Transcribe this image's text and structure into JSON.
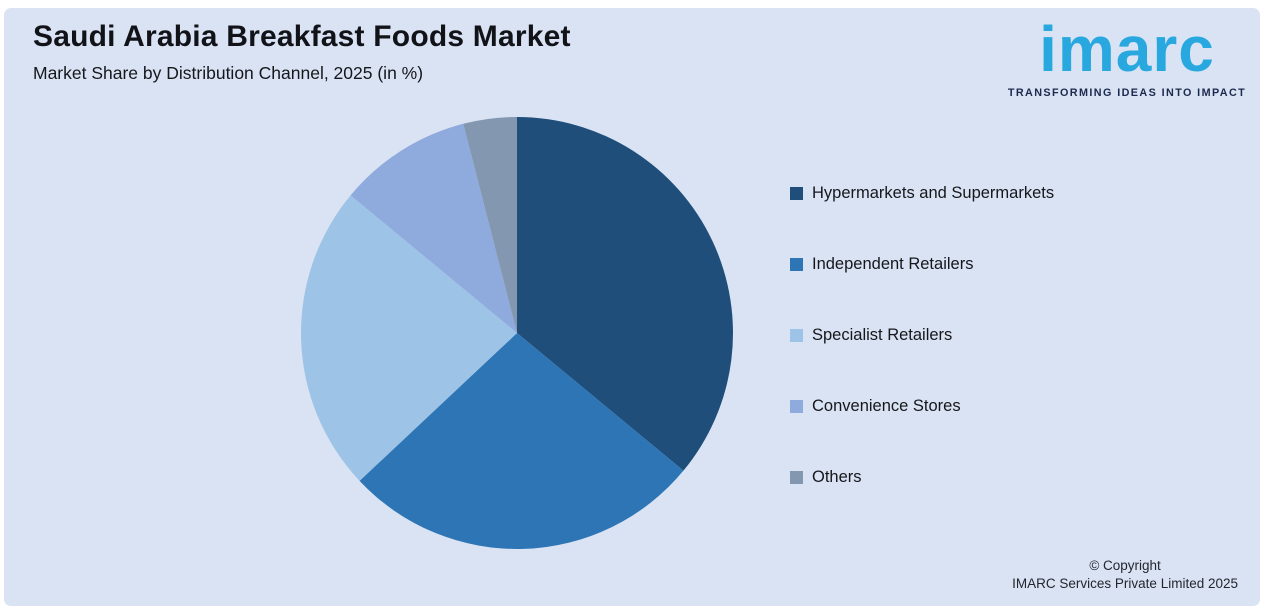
{
  "header": {
    "title": "Saudi Arabia Breakfast Foods Market",
    "subtitle": "Market Share by Distribution Channel, 2025 (in %)"
  },
  "logo": {
    "wordmark": "imarc",
    "tagline": "TRANSFORMING IDEAS INTO IMPACT",
    "wordmark_color": "#29A8E0",
    "tagline_color": "#1B2A4E"
  },
  "chart_data": {
    "type": "pie",
    "title": "Saudi Arabia Breakfast Foods Market",
    "subtitle": "Market Share by Distribution Channel, 2025 (in %)",
    "unit": "percent",
    "year": "2025",
    "direction": "clockwise",
    "start_angle": "12 o'clock",
    "legend_position": "right",
    "categories": [
      "Hypermarkets and Supermarkets",
      "Independent Retailers",
      "Specialist Retailers",
      "Convenience Stores",
      "Others"
    ],
    "values": [
      36,
      27,
      23,
      10,
      4
    ],
    "colors": [
      "#1F4E7A",
      "#2E75B6",
      "#9DC3E6",
      "#8FAADC",
      "#8497B0"
    ]
  },
  "legend": {
    "items": [
      {
        "label": "Hypermarkets and Supermarkets",
        "color": "#1F4E7A"
      },
      {
        "label": "Independent Retailers",
        "color": "#2E75B6"
      },
      {
        "label": "Specialist Retailers",
        "color": "#9DC3E6"
      },
      {
        "label": "Convenience Stores",
        "color": "#8FAADC"
      },
      {
        "label": "Others",
        "color": "#8497B0"
      }
    ]
  },
  "footer": {
    "copyright_line1": "© Copyright",
    "copyright_line2": "IMARC Services Private Limited 2025"
  },
  "colors": {
    "panel_background": "#DAE3F3",
    "page_border": "#FFFFFF",
    "title_text": "#111318",
    "body_text": "#15171c"
  }
}
